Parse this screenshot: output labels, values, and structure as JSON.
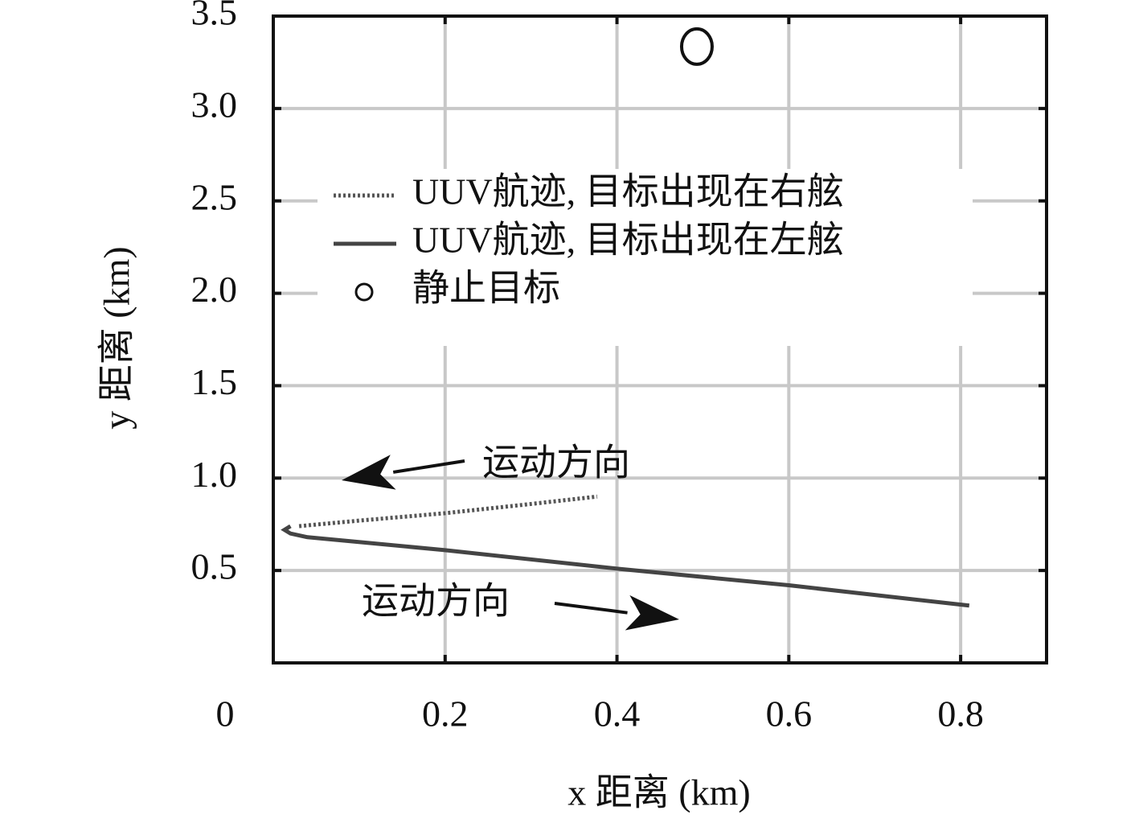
{
  "chart_data": {
    "type": "line",
    "xlabel": "x 距离 (km)",
    "ylabel": "y 距离 (km)",
    "xlim": [
      0,
      0.9
    ],
    "ylim": [
      0,
      3.5
    ],
    "xticks": [
      0,
      0.2,
      0.4,
      0.6,
      0.8
    ],
    "yticks": [
      {
        "value": 0.5,
        "label": "0.5"
      },
      {
        "value": 1,
        "label": "1.0"
      },
      {
        "value": 1.5,
        "label": "1.5"
      },
      {
        "value": 2,
        "label": "2.0"
      },
      {
        "value": 2.5,
        "label": "2.5"
      },
      {
        "value": 3,
        "label": "3.0"
      },
      {
        "value": 3.5,
        "label": "3.5"
      }
    ],
    "grid": true,
    "legend": "upper left",
    "series": [
      {
        "name": "UUV航迹, 目标出现在右舷",
        "color": "#555555",
        "style": "dotted",
        "x": [
          0.03,
          0.1,
          0.2,
          0.3,
          0.377
        ],
        "values": [
          0.74,
          0.77,
          0.81,
          0.86,
          0.9
        ]
      },
      {
        "name": "UUV航迹, 目标出现在左舷",
        "color": "#444444",
        "style": "solid",
        "x": [
          0.02,
          0.013,
          0.02,
          0.04,
          0.2,
          0.4,
          0.6,
          0.81
        ],
        "values": [
          0.74,
          0.72,
          0.7,
          0.68,
          0.61,
          0.51,
          0.42,
          0.31
        ]
      },
      {
        "name": "静止目标",
        "color": "#111111",
        "style": "marker",
        "x": [
          0.493
        ],
        "values": [
          3.335
        ]
      }
    ],
    "annotations": [
      "运动方向",
      "运动方向"
    ]
  }
}
